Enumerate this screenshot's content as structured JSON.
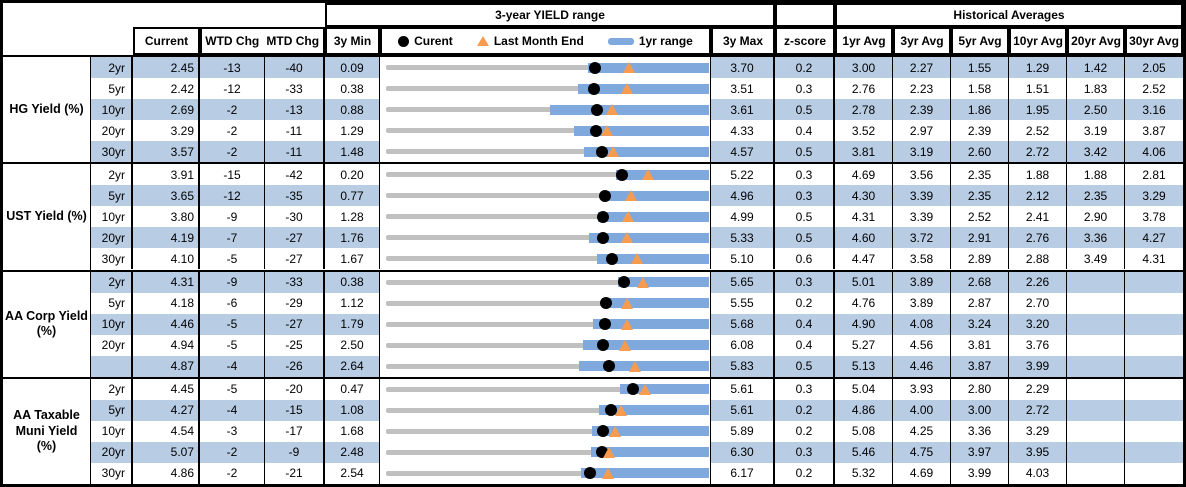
{
  "header": {
    "range_title": "3-year YIELD range",
    "hist_title": "Historical Averages",
    "cols": {
      "current": "Current",
      "wtd": "WTD Chg",
      "mtd": "MTD Chg",
      "min": "3y Min",
      "max": "3y Max",
      "zscore": "z-score",
      "avgs": [
        "1yr Avg",
        "3yr Avg",
        "5yr Avg",
        "10yr Avg",
        "20yr Avg",
        "30yr Avg"
      ]
    },
    "legend": {
      "current": "Curent",
      "last_month": "Last Month End",
      "range": "1yr range"
    }
  },
  "colors": {
    "stripe": "#b8cce4",
    "bar_1yr": "#7fa9dc",
    "track_3yr": "#c0c0c0",
    "current_dot": "#000000",
    "last_month_triangle": "#f79c4e"
  },
  "chart_data": {
    "type": "table",
    "notes": "Each row has a bullet chart: gray track spans 3y Min to 3y Max, blue bar is the 1yr range, black dot is Current, orange triangle is Last Month End. WTD/MTD changes are in basis points.",
    "sections": [
      {
        "label": "HG Yield (%)",
        "rows": [
          {
            "tenor": "2yr",
            "current": "2.45",
            "wtd_chg": "-13",
            "mtd_chg": "-40",
            "min_3y": "0.09",
            "max_3y": "3.70",
            "z_score": "0.2",
            "avgs": [
              "3.00",
              "2.27",
              "1.55",
              "1.29",
              "1.42",
              "2.05"
            ],
            "last_month_end": 2.85,
            "range_1yr": [
              2.4,
              3.7
            ]
          },
          {
            "tenor": "5yr",
            "current": "2.42",
            "wtd_chg": "-12",
            "mtd_chg": "-33",
            "min_3y": "0.38",
            "max_3y": "3.51",
            "z_score": "0.3",
            "avgs": [
              "2.76",
              "2.23",
              "1.58",
              "1.51",
              "1.83",
              "2.52"
            ],
            "last_month_end": 2.75,
            "range_1yr": [
              2.28,
              3.51
            ]
          },
          {
            "tenor": "10yr",
            "current": "2.69",
            "wtd_chg": "-2",
            "mtd_chg": "-13",
            "min_3y": "0.88",
            "max_3y": "3.61",
            "z_score": "0.5",
            "avgs": [
              "2.78",
              "2.39",
              "1.86",
              "1.95",
              "2.50",
              "3.16"
            ],
            "last_month_end": 2.82,
            "range_1yr": [
              2.3,
              3.61
            ]
          },
          {
            "tenor": "20yr",
            "current": "3.29",
            "wtd_chg": "-2",
            "mtd_chg": "-11",
            "min_3y": "1.29",
            "max_3y": "4.33",
            "z_score": "0.4",
            "avgs": [
              "3.52",
              "2.97",
              "2.39",
              "2.52",
              "3.19",
              "3.87"
            ],
            "last_month_end": 3.4,
            "range_1yr": [
              3.1,
              4.33
            ]
          },
          {
            "tenor": "30yr",
            "current": "3.57",
            "wtd_chg": "-2",
            "mtd_chg": "-11",
            "min_3y": "1.48",
            "max_3y": "4.57",
            "z_score": "0.5",
            "avgs": [
              "3.81",
              "3.19",
              "2.60",
              "2.72",
              "3.42",
              "4.06"
            ],
            "last_month_end": 3.68,
            "range_1yr": [
              3.42,
              4.57
            ]
          }
        ]
      },
      {
        "label": "UST Yield (%)",
        "rows": [
          {
            "tenor": "2yr",
            "current": "3.91",
            "wtd_chg": "-15",
            "mtd_chg": "-42",
            "min_3y": "0.20",
            "max_3y": "5.22",
            "z_score": "0.3",
            "avgs": [
              "4.69",
              "3.56",
              "2.35",
              "1.88",
              "1.88",
              "2.81"
            ],
            "last_month_end": 4.33,
            "range_1yr": [
              3.85,
              5.22
            ]
          },
          {
            "tenor": "5yr",
            "current": "3.65",
            "wtd_chg": "-12",
            "mtd_chg": "-35",
            "min_3y": "0.77",
            "max_3y": "4.96",
            "z_score": "0.3",
            "avgs": [
              "4.30",
              "3.39",
              "2.35",
              "2.12",
              "2.35",
              "3.29"
            ],
            "last_month_end": 4.0,
            "range_1yr": [
              3.62,
              4.96
            ]
          },
          {
            "tenor": "10yr",
            "current": "3.80",
            "wtd_chg": "-9",
            "mtd_chg": "-30",
            "min_3y": "1.28",
            "max_3y": "4.99",
            "z_score": "0.5",
            "avgs": [
              "4.31",
              "3.39",
              "2.52",
              "2.41",
              "2.90",
              "3.78"
            ],
            "last_month_end": 4.1,
            "range_1yr": [
              3.77,
              4.99
            ]
          },
          {
            "tenor": "20yr",
            "current": "4.19",
            "wtd_chg": "-7",
            "mtd_chg": "-27",
            "min_3y": "1.76",
            "max_3y": "5.33",
            "z_score": "0.5",
            "avgs": [
              "4.60",
              "3.72",
              "2.91",
              "2.76",
              "3.36",
              "4.27"
            ],
            "last_month_end": 4.46,
            "range_1yr": [
              4.05,
              5.33
            ]
          },
          {
            "tenor": "30yr",
            "current": "4.10",
            "wtd_chg": "-5",
            "mtd_chg": "-27",
            "min_3y": "1.67",
            "max_3y": "5.10",
            "z_score": "0.6",
            "avgs": [
              "4.47",
              "3.58",
              "2.89",
              "2.88",
              "3.49",
              "4.31"
            ],
            "last_month_end": 4.37,
            "range_1yr": [
              3.96,
              5.1
            ]
          }
        ]
      },
      {
        "label": "AA Corp Yield\n(%)",
        "rows": [
          {
            "tenor": "2yr",
            "current": "4.31",
            "wtd_chg": "-9",
            "mtd_chg": "-33",
            "min_3y": "0.38",
            "max_3y": "5.65",
            "z_score": "0.3",
            "avgs": [
              "5.01",
              "3.89",
              "2.68",
              "2.26",
              "",
              ""
            ],
            "last_month_end": 4.64,
            "range_1yr": [
              4.24,
              5.65
            ]
          },
          {
            "tenor": "5yr",
            "current": "4.18",
            "wtd_chg": "-6",
            "mtd_chg": "-29",
            "min_3y": "1.12",
            "max_3y": "5.55",
            "z_score": "0.2",
            "avgs": [
              "4.76",
              "3.89",
              "2.87",
              "2.70",
              "",
              ""
            ],
            "last_month_end": 4.47,
            "range_1yr": [
              4.15,
              5.55
            ]
          },
          {
            "tenor": "10yr",
            "current": "4.46",
            "wtd_chg": "-5",
            "mtd_chg": "-27",
            "min_3y": "1.79",
            "max_3y": "5.68",
            "z_score": "0.4",
            "avgs": [
              "4.90",
              "4.08",
              "3.24",
              "3.20",
              "",
              ""
            ],
            "last_month_end": 4.73,
            "range_1yr": [
              4.34,
              5.68
            ]
          },
          {
            "tenor": "20yr",
            "current": "4.94",
            "wtd_chg": "-5",
            "mtd_chg": "-25",
            "min_3y": "2.50",
            "max_3y": "6.08",
            "z_score": "0.4",
            "avgs": [
              "5.27",
              "4.56",
              "3.81",
              "3.76",
              "",
              ""
            ],
            "last_month_end": 5.19,
            "range_1yr": [
              4.73,
              6.08
            ]
          },
          {
            "tenor": "",
            "current": "4.87",
            "wtd_chg": "-4",
            "mtd_chg": "-26",
            "min_3y": "2.64",
            "max_3y": "5.83",
            "z_score": "0.5",
            "avgs": [
              "5.13",
              "4.46",
              "3.87",
              "3.99",
              "",
              ""
            ],
            "last_month_end": 5.13,
            "range_1yr": [
              4.59,
              5.83
            ]
          }
        ]
      },
      {
        "label": "AA Taxable\nMuni Yield\n(%)",
        "rows": [
          {
            "tenor": "2yr",
            "current": "4.45",
            "wtd_chg": "-5",
            "mtd_chg": "-20",
            "min_3y": "0.47",
            "max_3y": "5.61",
            "z_score": "0.3",
            "avgs": [
              "5.04",
              "3.93",
              "2.80",
              "2.29",
              "",
              ""
            ],
            "last_month_end": 4.65,
            "range_1yr": [
              4.28,
              5.61
            ]
          },
          {
            "tenor": "5yr",
            "current": "4.27",
            "wtd_chg": "-4",
            "mtd_chg": "-15",
            "min_3y": "1.08",
            "max_3y": "5.61",
            "z_score": "0.2",
            "avgs": [
              "4.86",
              "4.00",
              "3.00",
              "2.72",
              "",
              ""
            ],
            "last_month_end": 4.42,
            "range_1yr": [
              4.14,
              5.61
            ]
          },
          {
            "tenor": "10yr",
            "current": "4.54",
            "wtd_chg": "-3",
            "mtd_chg": "-17",
            "min_3y": "1.68",
            "max_3y": "5.89",
            "z_score": "0.2",
            "avgs": [
              "5.08",
              "4.25",
              "3.36",
              "3.29",
              "",
              ""
            ],
            "last_month_end": 4.71,
            "range_1yr": [
              4.43,
              5.89
            ]
          },
          {
            "tenor": "20yr",
            "current": "5.07",
            "wtd_chg": "-2",
            "mtd_chg": "-9",
            "min_3y": "2.48",
            "max_3y": "6.30",
            "z_score": "0.3",
            "avgs": [
              "5.46",
              "4.75",
              "3.97",
              "3.95",
              "",
              ""
            ],
            "last_month_end": 5.16,
            "range_1yr": [
              4.96,
              6.3
            ]
          },
          {
            "tenor": "30yr",
            "current": "4.86",
            "wtd_chg": "-2",
            "mtd_chg": "-21",
            "min_3y": "2.54",
            "max_3y": "6.17",
            "z_score": "0.2",
            "avgs": [
              "5.32",
              "4.69",
              "3.99",
              "4.03",
              "",
              ""
            ],
            "last_month_end": 5.07,
            "range_1yr": [
              4.78,
              6.17
            ]
          }
        ]
      }
    ]
  }
}
